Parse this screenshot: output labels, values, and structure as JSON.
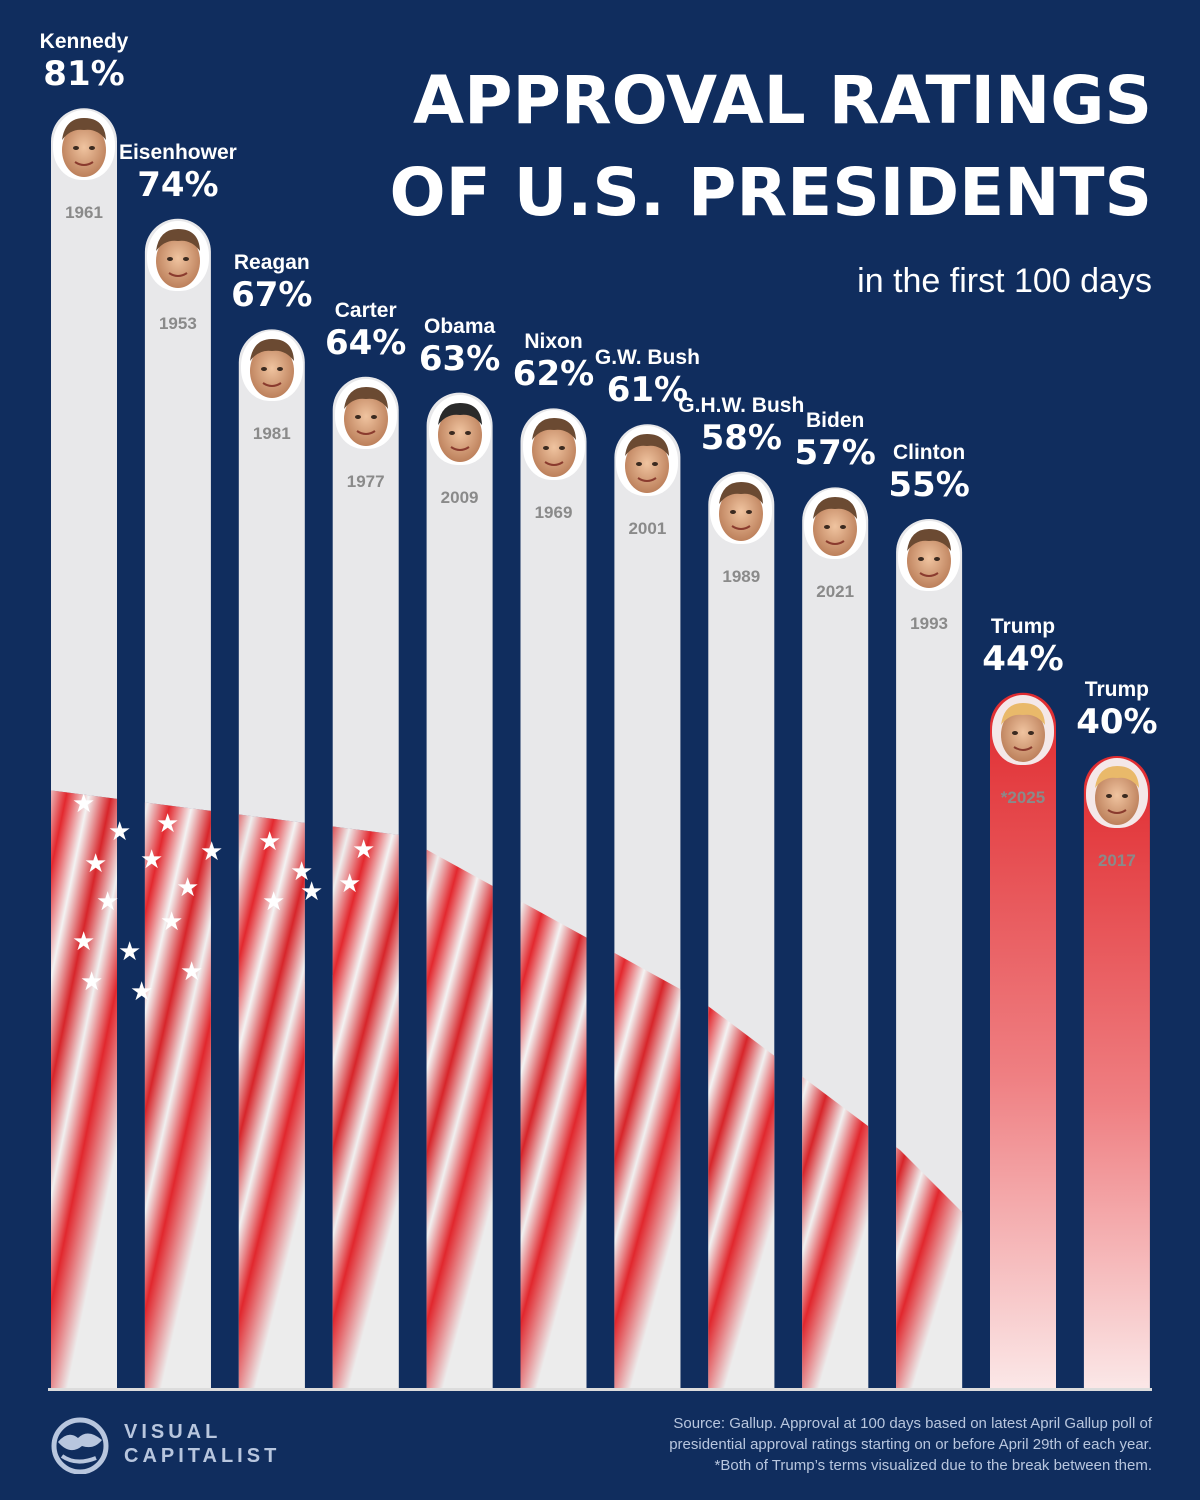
{
  "header": {
    "title_line1": "APPROVAL RATINGS",
    "title_line2": "OF U.S. PRESIDENTS",
    "subtitle": "in the first 100 days"
  },
  "colors": {
    "background": "#102d5e",
    "bar_default": "#e8e8ea",
    "bar_highlight": "#e43a3c",
    "year_text": "#8a8a8a"
  },
  "chart_data": {
    "type": "bar",
    "title": "APPROVAL RATINGS OF U.S. PRESIDENTS",
    "subtitle": "in the first 100 days",
    "unit": "%",
    "ylim": [
      0,
      100
    ],
    "grid": false,
    "categories": [
      "Kennedy",
      "Eisenhower",
      "Reagan",
      "Carter",
      "Obama",
      "Nixon",
      "G.W. Bush",
      "G.H.W. Bush",
      "Biden",
      "Clinton",
      "Trump",
      "Trump"
    ],
    "values": [
      81,
      74,
      67,
      64,
      63,
      62,
      61,
      58,
      57,
      55,
      44,
      40
    ],
    "value_labels": [
      "81%",
      "74%",
      "67%",
      "64%",
      "63%",
      "62%",
      "61%",
      "58%",
      "57%",
      "55%",
      "44%",
      "40%"
    ],
    "years": [
      "1961",
      "1953",
      "1981",
      "1977",
      "2009",
      "1969",
      "2001",
      "1989",
      "2021",
      "1993",
      "*2025",
      "2017"
    ],
    "highlighted": [
      false,
      false,
      false,
      false,
      false,
      false,
      false,
      false,
      false,
      false,
      true,
      true
    ]
  },
  "footer": {
    "logo_line1": "VISUAL",
    "logo_line2": "CAPITALIST",
    "source_line1": "Source: Gallup. Approval at 100 days based on latest April Gallup poll of",
    "source_line2": "presidential approval ratings starting on or before April 29th of each year.",
    "source_line3": "*Both of Trump’s terms visualized due to the break between them."
  }
}
